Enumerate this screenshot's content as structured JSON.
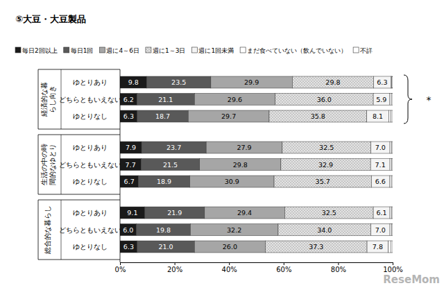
{
  "chart_data": {
    "type": "bar",
    "orientation": "horizontal",
    "stacked": true,
    "title": "⑤大豆・大豆製品",
    "groups": [
      {
        "name": "経済的な暮らし向き",
        "categories": [
          "ゆとりあり",
          "どちらともいえない",
          "ゆとりなし"
        ]
      },
      {
        "name": "生活の中の時間的なゆとり",
        "categories": [
          "ゆとりあり",
          "どちらともいえない",
          "ゆとりなし"
        ]
      },
      {
        "name": "総合的な暮らし",
        "categories": [
          "ゆとりあり",
          "どちらともいえない",
          "ゆとりなし"
        ]
      }
    ],
    "series": [
      {
        "name": "毎日2回以上",
        "color": "#1a1a1a",
        "data_labels": true,
        "values": [
          9.8,
          6.2,
          6.3,
          7.9,
          7.7,
          6.7,
          9.1,
          6.0,
          6.3
        ],
        "value_labels": [
          "9.8",
          "6.2",
          "6.3",
          "7.9",
          "7.7",
          "6.7",
          "9.1",
          "6.0",
          "6.3"
        ]
      },
      {
        "name": "毎日1回",
        "color": "#595959",
        "data_labels": true,
        "values": [
          23.5,
          21.1,
          18.7,
          23.7,
          21.5,
          18.9,
          21.9,
          19.8,
          21.0
        ],
        "value_labels": [
          "23.5",
          "21.1",
          "18.7",
          "23.7",
          "21.5",
          "18.9",
          "21.9",
          "19.8",
          "21.0"
        ]
      },
      {
        "name": "週に4～6日",
        "color": "#a6a6a6",
        "data_labels": true,
        "values": [
          29.9,
          29.6,
          29.7,
          27.9,
          29.8,
          30.9,
          29.4,
          32.2,
          26.0
        ],
        "value_labels": [
          "29.9",
          "29.6",
          "29.7",
          "27.9",
          "29.8",
          "30.9",
          "29.4",
          "32.2",
          "26.0"
        ]
      },
      {
        "name": "週に1～3日",
        "color": "#e3e3e3",
        "marker": "dots",
        "data_labels": true,
        "values": [
          29.8,
          36.0,
          35.8,
          32.5,
          32.9,
          35.7,
          32.5,
          34.0,
          37.3
        ],
        "value_labels": [
          "29.8",
          "36.0",
          "35.8",
          "32.5",
          "32.9",
          "35.7",
          "32.5",
          "34.0",
          "37.3"
        ]
      },
      {
        "name": "週に1回未満",
        "color": "#f4f4f4",
        "data_labels": true,
        "values": [
          6.3,
          5.9,
          8.1,
          7.0,
          7.1,
          6.6,
          6.1,
          7.0,
          7.8
        ],
        "value_labels": [
          "6.3",
          "5.9",
          "8.1",
          "7.0",
          "7.1",
          "6.6",
          "6.1",
          "7.0",
          "7.8"
        ]
      },
      {
        "name": "まだ食べていない（飲んでいない）",
        "color": "#ffffff",
        "data_labels": false,
        "values": [
          0.4,
          0.7,
          0.8,
          0.6,
          0.6,
          0.7,
          0.6,
          0.6,
          0.9
        ]
      },
      {
        "name": "不詳",
        "color": "#ffffff",
        "data_labels": false,
        "values": [
          0.3,
          0.5,
          0.6,
          0.4,
          0.4,
          0.5,
          0.4,
          0.4,
          0.7
        ]
      }
    ],
    "xlim": [
      0,
      100
    ],
    "xticks": [
      {
        "value": 0,
        "label": "0%"
      },
      {
        "value": 20,
        "label": "20%"
      },
      {
        "value": 40,
        "label": "40%"
      },
      {
        "value": 60,
        "label": "60%"
      },
      {
        "value": 80,
        "label": "80%"
      },
      {
        "value": 100,
        "label": "100%"
      }
    ],
    "grid": false,
    "annotation": "*",
    "watermark": "ReseMom"
  }
}
